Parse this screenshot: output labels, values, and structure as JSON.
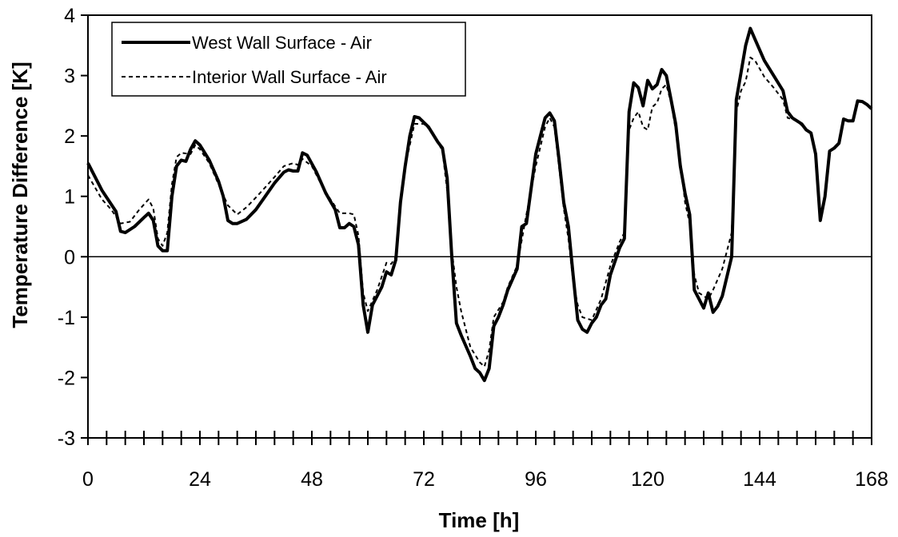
{
  "chart_data": {
    "type": "line",
    "title": "",
    "xlabel": "Time [h]",
    "ylabel": "Temperature Difference [K]",
    "xlim": [
      0,
      168
    ],
    "ylim": [
      -3,
      4
    ],
    "xticks": [
      0,
      24,
      48,
      72,
      96,
      120,
      144,
      168
    ],
    "yticks": [
      4,
      3,
      2,
      1,
      0,
      -1,
      -2,
      -3
    ],
    "x_minor_step": 4,
    "grid": false,
    "zero_line": true,
    "legend": "top-left",
    "series": [
      {
        "name": "West Wall Surface - Air",
        "style": "solid",
        "color": "#000000",
        "points": [
          [
            0,
            1.55
          ],
          [
            3,
            1.1
          ],
          [
            6,
            0.75
          ],
          [
            7,
            0.42
          ],
          [
            8,
            0.4
          ],
          [
            10,
            0.5
          ],
          [
            12,
            0.65
          ],
          [
            13,
            0.72
          ],
          [
            14,
            0.6
          ],
          [
            15,
            0.18
          ],
          [
            16,
            0.1
          ],
          [
            17,
            0.1
          ],
          [
            18,
            1.0
          ],
          [
            19,
            1.5
          ],
          [
            20,
            1.6
          ],
          [
            21,
            1.58
          ],
          [
            22,
            1.78
          ],
          [
            23,
            1.92
          ],
          [
            24,
            1.85
          ],
          [
            26,
            1.6
          ],
          [
            28,
            1.25
          ],
          [
            29,
            1.0
          ],
          [
            30,
            0.6
          ],
          [
            31,
            0.55
          ],
          [
            32,
            0.55
          ],
          [
            34,
            0.62
          ],
          [
            36,
            0.78
          ],
          [
            38,
            1.0
          ],
          [
            40,
            1.22
          ],
          [
            42,
            1.4
          ],
          [
            43,
            1.44
          ],
          [
            44,
            1.42
          ],
          [
            45,
            1.42
          ],
          [
            46,
            1.72
          ],
          [
            47,
            1.68
          ],
          [
            49,
            1.4
          ],
          [
            51,
            1.05
          ],
          [
            53,
            0.78
          ],
          [
            54,
            0.48
          ],
          [
            55,
            0.48
          ],
          [
            56,
            0.55
          ],
          [
            57,
            0.5
          ],
          [
            58,
            0.2
          ],
          [
            59,
            -0.8
          ],
          [
            60,
            -1.25
          ],
          [
            61,
            -0.8
          ],
          [
            63,
            -0.5
          ],
          [
            64,
            -0.25
          ],
          [
            65,
            -0.3
          ],
          [
            66,
            -0.05
          ],
          [
            67,
            0.9
          ],
          [
            68,
            1.5
          ],
          [
            69,
            2.0
          ],
          [
            70,
            2.32
          ],
          [
            71,
            2.3
          ],
          [
            73,
            2.15
          ],
          [
            75,
            1.9
          ],
          [
            76,
            1.8
          ],
          [
            77,
            1.3
          ],
          [
            78,
            0.0
          ],
          [
            79,
            -1.1
          ],
          [
            80,
            -1.3
          ],
          [
            82,
            -1.65
          ],
          [
            83,
            -1.85
          ],
          [
            84,
            -1.92
          ],
          [
            85,
            -2.05
          ],
          [
            86,
            -1.85
          ],
          [
            87,
            -1.15
          ],
          [
            88,
            -1.0
          ],
          [
            89,
            -0.8
          ],
          [
            90,
            -0.55
          ],
          [
            92,
            -0.2
          ],
          [
            93,
            0.5
          ],
          [
            94,
            0.55
          ],
          [
            96,
            1.7
          ],
          [
            97,
            2.0
          ],
          [
            98,
            2.3
          ],
          [
            99,
            2.38
          ],
          [
            100,
            2.25
          ],
          [
            101,
            1.6
          ],
          [
            102,
            0.9
          ],
          [
            103,
            0.5
          ],
          [
            104,
            -0.3
          ],
          [
            105,
            -1.05
          ],
          [
            106,
            -1.2
          ],
          [
            107,
            -1.25
          ],
          [
            108,
            -1.1
          ],
          [
            109,
            -1.0
          ],
          [
            110,
            -0.8
          ],
          [
            111,
            -0.7
          ],
          [
            112,
            -0.3
          ],
          [
            114,
            0.15
          ],
          [
            115,
            0.3
          ],
          [
            116,
            2.4
          ],
          [
            117,
            2.88
          ],
          [
            118,
            2.8
          ],
          [
            119,
            2.5
          ],
          [
            120,
            2.92
          ],
          [
            121,
            2.78
          ],
          [
            122,
            2.85
          ],
          [
            123,
            3.1
          ],
          [
            124,
            3.0
          ],
          [
            125,
            2.6
          ],
          [
            126,
            2.2
          ],
          [
            127,
            1.5
          ],
          [
            128,
            1.05
          ],
          [
            129,
            0.7
          ],
          [
            130,
            -0.55
          ],
          [
            131,
            -0.7
          ],
          [
            132,
            -0.85
          ],
          [
            133,
            -0.6
          ],
          [
            134,
            -0.92
          ],
          [
            135,
            -0.82
          ],
          [
            136,
            -0.65
          ],
          [
            138,
            0.0
          ],
          [
            139,
            2.6
          ],
          [
            140,
            3.05
          ],
          [
            141,
            3.5
          ],
          [
            142,
            3.78
          ],
          [
            143,
            3.6
          ],
          [
            145,
            3.25
          ],
          [
            147,
            3.0
          ],
          [
            149,
            2.75
          ],
          [
            150,
            2.4
          ],
          [
            151,
            2.3
          ],
          [
            152,
            2.25
          ],
          [
            153,
            2.2
          ],
          [
            154,
            2.1
          ],
          [
            155,
            2.05
          ],
          [
            156,
            1.7
          ],
          [
            157,
            0.6
          ],
          [
            158,
            1.0
          ],
          [
            159,
            1.75
          ],
          [
            160,
            1.8
          ],
          [
            161,
            1.88
          ],
          [
            162,
            2.28
          ],
          [
            163,
            2.25
          ],
          [
            164,
            2.25
          ],
          [
            165,
            2.58
          ],
          [
            166,
            2.57
          ],
          [
            167,
            2.52
          ],
          [
            168,
            2.45
          ]
        ]
      },
      {
        "name": "Interior Wall Surface - Air",
        "style": "dotted",
        "color": "#000000",
        "points": [
          [
            0,
            1.35
          ],
          [
            3,
            0.95
          ],
          [
            5,
            0.78
          ],
          [
            7,
            0.55
          ],
          [
            9,
            0.58
          ],
          [
            11,
            0.78
          ],
          [
            13,
            0.95
          ],
          [
            14,
            0.8
          ],
          [
            15,
            0.3
          ],
          [
            16,
            0.18
          ],
          [
            17,
            0.4
          ],
          [
            18,
            1.2
          ],
          [
            19,
            1.65
          ],
          [
            20,
            1.72
          ],
          [
            22,
            1.7
          ],
          [
            23,
            1.85
          ],
          [
            24,
            1.78
          ],
          [
            26,
            1.55
          ],
          [
            28,
            1.2
          ],
          [
            30,
            0.85
          ],
          [
            32,
            0.7
          ],
          [
            34,
            0.82
          ],
          [
            36,
            0.98
          ],
          [
            38,
            1.15
          ],
          [
            40,
            1.32
          ],
          [
            42,
            1.5
          ],
          [
            44,
            1.55
          ],
          [
            45,
            1.52
          ],
          [
            46,
            1.62
          ],
          [
            48,
            1.5
          ],
          [
            50,
            1.2
          ],
          [
            52,
            0.95
          ],
          [
            54,
            0.72
          ],
          [
            56,
            0.72
          ],
          [
            57,
            0.7
          ],
          [
            58,
            0.35
          ],
          [
            59,
            -0.6
          ],
          [
            60,
            -0.9
          ],
          [
            62,
            -0.55
          ],
          [
            64,
            -0.1
          ],
          [
            65,
            -0.12
          ],
          [
            66,
            0.0
          ],
          [
            67,
            0.9
          ],
          [
            68,
            1.5
          ],
          [
            70,
            2.2
          ],
          [
            72,
            2.2
          ],
          [
            74,
            2.05
          ],
          [
            76,
            1.75
          ],
          [
            77,
            1.1
          ],
          [
            78,
            0.1
          ],
          [
            79,
            -0.5
          ],
          [
            80,
            -0.9
          ],
          [
            81,
            -1.2
          ],
          [
            82,
            -1.5
          ],
          [
            84,
            -1.75
          ],
          [
            85,
            -1.82
          ],
          [
            86,
            -1.55
          ],
          [
            87,
            -1.0
          ],
          [
            89,
            -0.75
          ],
          [
            90,
            -0.5
          ],
          [
            92,
            -0.15
          ],
          [
            94,
            0.7
          ],
          [
            96,
            1.5
          ],
          [
            98,
            2.15
          ],
          [
            99,
            2.3
          ],
          [
            100,
            2.15
          ],
          [
            102,
            0.8
          ],
          [
            103,
            0.3
          ],
          [
            104,
            -0.4
          ],
          [
            105,
            -0.8
          ],
          [
            106,
            -1.0
          ],
          [
            108,
            -1.05
          ],
          [
            110,
            -0.7
          ],
          [
            112,
            -0.15
          ],
          [
            114,
            0.25
          ],
          [
            115,
            0.4
          ],
          [
            116,
            2.1
          ],
          [
            117,
            2.3
          ],
          [
            118,
            2.4
          ],
          [
            119,
            2.15
          ],
          [
            120,
            2.1
          ],
          [
            121,
            2.48
          ],
          [
            122,
            2.55
          ],
          [
            123,
            2.78
          ],
          [
            124,
            2.85
          ],
          [
            125,
            2.55
          ],
          [
            126,
            2.1
          ],
          [
            127,
            1.6
          ],
          [
            128,
            0.9
          ],
          [
            129,
            0.55
          ],
          [
            130,
            -0.3
          ],
          [
            131,
            -0.6
          ],
          [
            133,
            -0.7
          ],
          [
            134,
            -0.55
          ],
          [
            136,
            -0.2
          ],
          [
            137,
            0.1
          ],
          [
            138,
            0.4
          ],
          [
            139,
            2.4
          ],
          [
            140,
            2.75
          ],
          [
            141,
            2.9
          ],
          [
            142,
            3.3
          ],
          [
            143,
            3.25
          ],
          [
            145,
            2.98
          ],
          [
            147,
            2.8
          ],
          [
            149,
            2.6
          ],
          [
            150,
            2.3
          ],
          [
            152,
            2.25
          ],
          [
            154,
            2.1
          ],
          [
            155,
            2.05
          ]
        ]
      }
    ]
  }
}
